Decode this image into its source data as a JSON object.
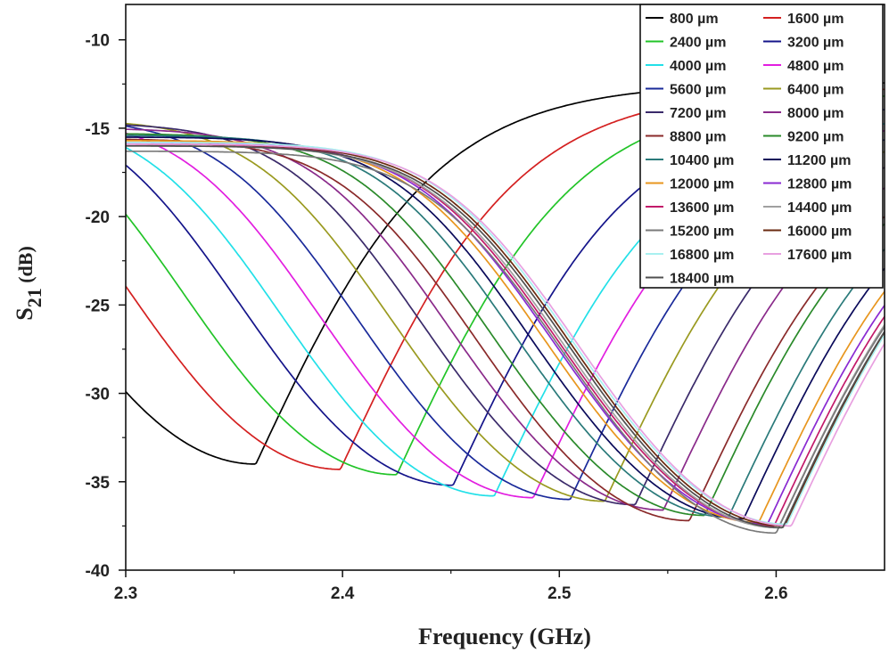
{
  "chart_data": {
    "type": "line",
    "title": "",
    "xlabel": "Frequency (GHz)",
    "ylabel": "S21 (dB)",
    "ylabel_main": "S",
    "ylabel_sub": "21",
    "ylabel_unit": " (dB)",
    "xlim": [
      2.3,
      2.65
    ],
    "ylim": [
      -40,
      -8
    ],
    "xticks": [
      "2.3",
      "2.4",
      "2.5",
      "2.6"
    ],
    "yticks": [
      "-10",
      "-15",
      "-20",
      "-25",
      "-30",
      "-35",
      "-40"
    ],
    "legend_position": "top-right",
    "legend_columns": 2,
    "series": [
      {
        "name": "800 µm",
        "color": "#000000",
        "fmin": 2.36,
        "min_db": -34.0
      },
      {
        "name": "1600 µm",
        "color": "#d42020",
        "fmin": 2.399,
        "min_db": -34.3
      },
      {
        "name": "2400 µm",
        "color": "#22c428",
        "fmin": 2.425,
        "min_db": -34.6
      },
      {
        "name": "3200 µm",
        "color": "#14148a",
        "fmin": 2.451,
        "min_db": -35.2
      },
      {
        "name": "4000 µm",
        "color": "#22e0e8",
        "fmin": 2.47,
        "min_db": -35.8
      },
      {
        "name": "4800 µm",
        "color": "#e21ee0",
        "fmin": 2.488,
        "min_db": -35.9
      },
      {
        "name": "5600 µm",
        "color": "#1a2a9a",
        "fmin": 2.505,
        "min_db": -36.0
      },
      {
        "name": "6400 µm",
        "color": "#9a9a20",
        "fmin": 2.521,
        "min_db": -36.1
      },
      {
        "name": "7200 µm",
        "color": "#3a2a6a",
        "fmin": 2.535,
        "min_db": -36.3
      },
      {
        "name": "8000 µm",
        "color": "#8a2a8a",
        "fmin": 2.548,
        "min_db": -36.6
      },
      {
        "name": "8800 µm",
        "color": "#8a2a2a",
        "fmin": 2.56,
        "min_db": -37.2
      },
      {
        "name": "9200 µm",
        "color": "#2a8a2a",
        "fmin": 2.567,
        "min_db": -36.9
      },
      {
        "name": "10400 µm",
        "color": "#2a7a7a",
        "fmin": 2.578,
        "min_db": -37.0
      },
      {
        "name": "11200 µm",
        "color": "#0a0a5a",
        "fmin": 2.585,
        "min_db": -37.1
      },
      {
        "name": "12000 µm",
        "color": "#e8961e",
        "fmin": 2.592,
        "min_db": -37.3
      },
      {
        "name": "12800 µm",
        "color": "#8a2ad2",
        "fmin": 2.596,
        "min_db": -37.4
      },
      {
        "name": "13600 µm",
        "color": "#c21a6a",
        "fmin": 2.599,
        "min_db": -37.5
      },
      {
        "name": "14400 µm",
        "color": "#a0a0a0",
        "fmin": 2.601,
        "min_db": -37.6
      },
      {
        "name": "15200 µm",
        "color": "#7a7a7a",
        "fmin": 2.6,
        "min_db": -37.9
      },
      {
        "name": "16000 µm",
        "color": "#6a2a10",
        "fmin": 2.604,
        "min_db": -37.5
      },
      {
        "name": "16800 µm",
        "color": "#a8f0f0",
        "fmin": 2.605,
        "min_db": -37.4
      },
      {
        "name": "17600 µm",
        "color": "#e8a0e0",
        "fmin": 2.607,
        "min_db": -37.5
      },
      {
        "name": "18400 µm",
        "color": "#505050",
        "fmin": 2.603,
        "min_db": -37.6
      }
    ]
  }
}
